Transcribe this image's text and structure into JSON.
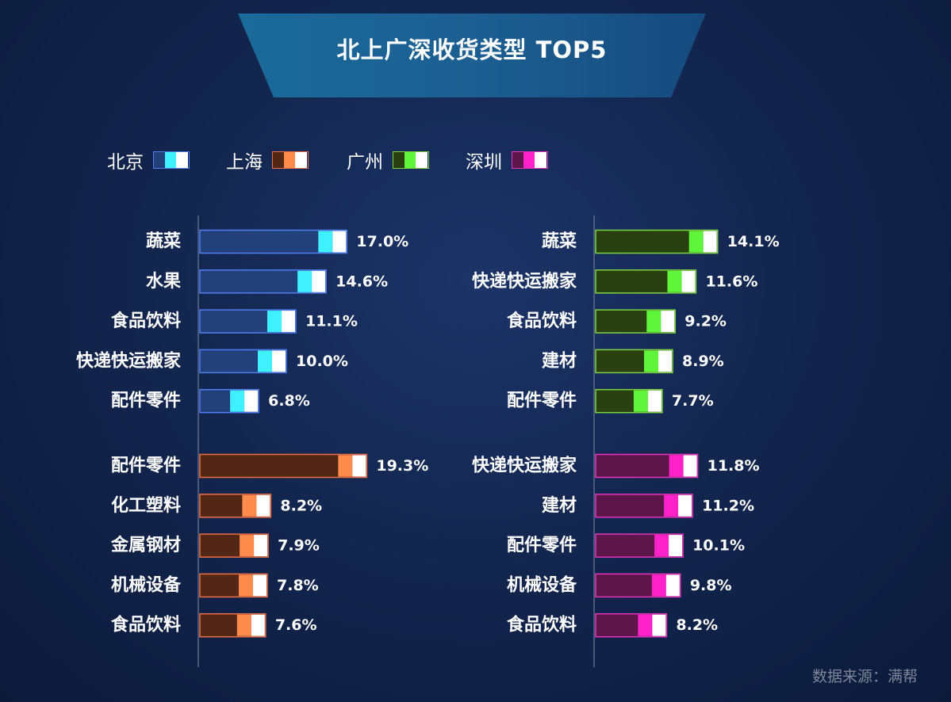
{
  "title": "北上广深收货类型 TOP5",
  "source": "数据来源：满帮",
  "legend": [
    {
      "name": "北京",
      "colors": {
        "fill": "#24407a",
        "border": "#4f7ef0",
        "accent": "#3ff1ff"
      }
    },
    {
      "name": "上海",
      "colors": {
        "fill": "#532715",
        "border": "#ec6f45",
        "accent": "#ff8b4c"
      }
    },
    {
      "name": "广州",
      "colors": {
        "fill": "#2b4011",
        "border": "#7cd443",
        "accent": "#5ff53a"
      }
    },
    {
      "name": "深圳",
      "colors": {
        "fill": "#5c1647",
        "border": "#e334bd",
        "accent": "#ff22c9"
      }
    }
  ],
  "chart_data": [
    {
      "type": "bar",
      "city": "北京",
      "categories": [
        "蔬菜",
        "水果",
        "食品饮料",
        "快递快运搬家",
        "配件零件"
      ],
      "values": [
        17.0,
        14.6,
        11.1,
        10.0,
        6.8
      ],
      "labels": [
        "17.0%",
        "14.6%",
        "11.1%",
        "10.0%",
        "6.8%"
      ]
    },
    {
      "type": "bar",
      "city": "广州",
      "categories": [
        "蔬菜",
        "快递快运搬家",
        "食品饮料",
        "建材",
        "配件零件"
      ],
      "values": [
        14.1,
        11.6,
        9.2,
        8.9,
        7.7
      ],
      "labels": [
        "14.1%",
        "11.6%",
        "9.2%",
        "8.9%",
        "7.7%"
      ]
    },
    {
      "type": "bar",
      "city": "上海",
      "categories": [
        "配件零件",
        "化工塑料",
        "金属钢材",
        "机械设备",
        "食品饮料"
      ],
      "values": [
        19.3,
        8.2,
        7.9,
        7.8,
        7.6
      ],
      "labels": [
        "19.3%",
        "8.2%",
        "7.9%",
        "7.8%",
        "7.6%"
      ]
    },
    {
      "type": "bar",
      "city": "深圳",
      "categories": [
        "快递快运搬家",
        "建材",
        "配件零件",
        "机械设备",
        "食品饮料"
      ],
      "values": [
        11.8,
        11.2,
        10.1,
        9.8,
        8.2
      ],
      "labels": [
        "11.8%",
        "11.2%",
        "10.1%",
        "9.8%",
        "8.2%"
      ]
    }
  ]
}
